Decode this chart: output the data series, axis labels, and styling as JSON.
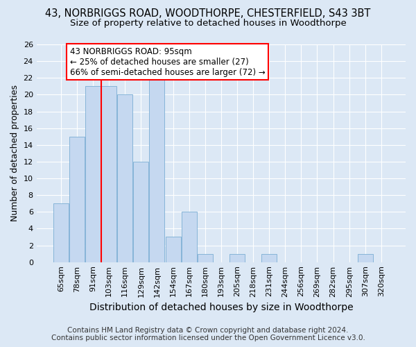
{
  "title_line1": "43, NORBRIGGS ROAD, WOODTHORPE, CHESTERFIELD, S43 3BT",
  "title_line2": "Size of property relative to detached houses in Woodthorpe",
  "xlabel": "Distribution of detached houses by size in Woodthorpe",
  "ylabel": "Number of detached properties",
  "footer_line1": "Contains HM Land Registry data © Crown copyright and database right 2024.",
  "footer_line2": "Contains public sector information licensed under the Open Government Licence v3.0.",
  "categories": [
    "65sqm",
    "78sqm",
    "91sqm",
    "103sqm",
    "116sqm",
    "129sqm",
    "142sqm",
    "154sqm",
    "167sqm",
    "180sqm",
    "193sqm",
    "205sqm",
    "218sqm",
    "231sqm",
    "244sqm",
    "256sqm",
    "269sqm",
    "282sqm",
    "295sqm",
    "307sqm",
    "320sqm"
  ],
  "values": [
    7,
    15,
    21,
    21,
    20,
    12,
    22,
    3,
    6,
    1,
    0,
    1,
    0,
    1,
    0,
    0,
    0,
    0,
    0,
    1,
    0
  ],
  "bar_color": "#c5d8f0",
  "bar_edge_color": "#7aadd4",
  "annotation_text_line1": "43 NORBRIGGS ROAD: 95sqm",
  "annotation_text_line2": "← 25% of detached houses are smaller (27)",
  "annotation_text_line3": "66% of semi-detached houses are larger (72) →",
  "annotation_box_facecolor": "white",
  "annotation_box_edgecolor": "red",
  "vline_color": "red",
  "vline_x": 2.5,
  "ylim": [
    0,
    26
  ],
  "yticks": [
    0,
    2,
    4,
    6,
    8,
    10,
    12,
    14,
    16,
    18,
    20,
    22,
    24,
    26
  ],
  "background_color": "#dce8f5",
  "plot_bg_color": "#dce8f5",
  "grid_color": "white",
  "title_fontsize": 10.5,
  "subtitle_fontsize": 9.5,
  "ylabel_fontsize": 9,
  "xlabel_fontsize": 10,
  "tick_fontsize": 8,
  "annotation_fontsize": 8.5,
  "footer_fontsize": 7.5
}
